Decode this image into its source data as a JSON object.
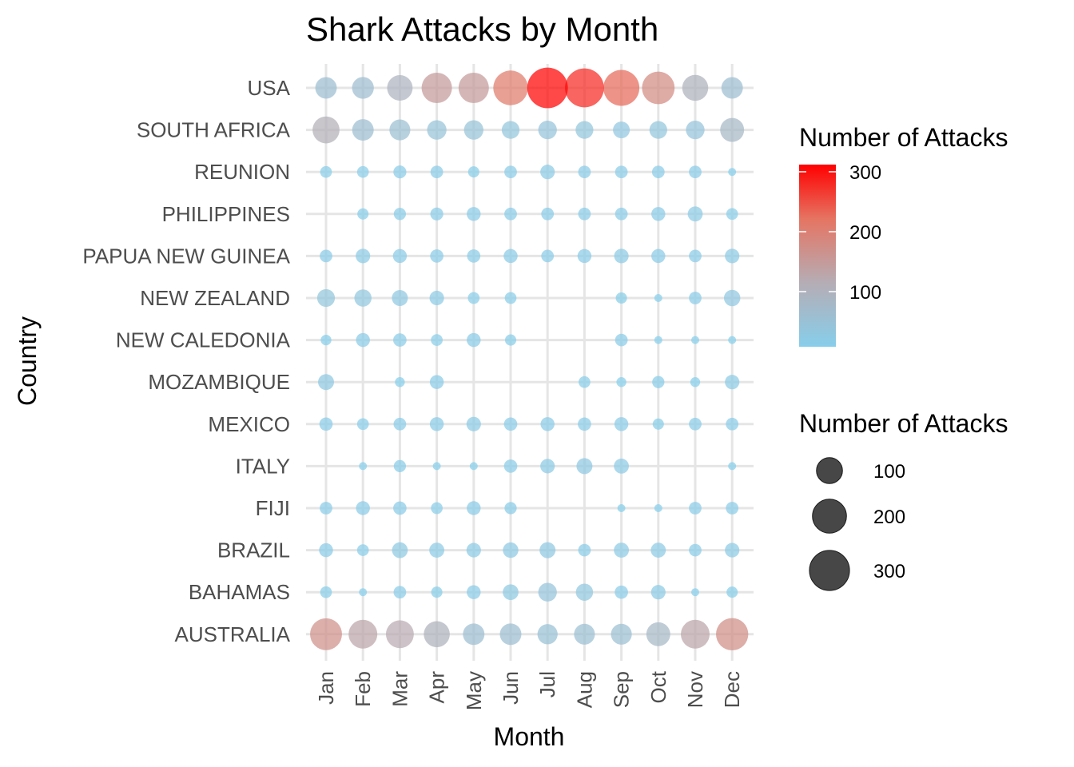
{
  "chart_data": {
    "type": "scatter",
    "title": "Shark Attacks by Month",
    "xlabel": "Month",
    "ylabel": "Country",
    "months": [
      "Jan",
      "Feb",
      "Mar",
      "Apr",
      "May",
      "Jun",
      "Jul",
      "Aug",
      "Sep",
      "Oct",
      "Nov",
      "Dec"
    ],
    "countries": [
      "USA",
      "SOUTH AFRICA",
      "REUNION",
      "PHILIPPINES",
      "PAPUA NEW GUINEA",
      "NEW ZEALAND",
      "NEW CALEDONIA",
      "MOZAMBIQUE",
      "MEXICO",
      "ITALY",
      "FIJI",
      "BRAZIL",
      "BAHAMAS",
      "AUSTRALIA"
    ],
    "values": {
      "USA": [
        60,
        62,
        95,
        150,
        150,
        210,
        310,
        280,
        230,
        180,
        100,
        60
      ],
      "SOUTH AFRICA": [
        110,
        60,
        55,
        45,
        45,
        35,
        40,
        35,
        30,
        35,
        40,
        80
      ],
      "REUNION": [
        12,
        12,
        15,
        14,
        11,
        14,
        20,
        14,
        14,
        14,
        14,
        8
      ],
      "PHILIPPINES": [
        null,
        11,
        13,
        15,
        18,
        14,
        14,
        14,
        14,
        18,
        22,
        12
      ],
      "PAPUA NEW GUINEA": [
        14,
        20,
        18,
        16,
        16,
        18,
        14,
        18,
        20,
        18,
        14,
        20
      ],
      "NEW ZEALAND": [
        35,
        32,
        26,
        20,
        12,
        12,
        null,
        null,
        11,
        8,
        14,
        28
      ],
      "NEW CALEDONIA": [
        10,
        18,
        16,
        12,
        18,
        11,
        null,
        null,
        14,
        8,
        8,
        7
      ],
      "MOZAMBIQUE": [
        26,
        null,
        9,
        18,
        null,
        null,
        null,
        12,
        9,
        13,
        9,
        20
      ],
      "MEXICO": [
        16,
        12,
        14,
        18,
        20,
        16,
        18,
        16,
        18,
        11,
        14,
        14
      ],
      "ITALY": [
        null,
        8,
        13,
        8,
        8,
        16,
        20,
        26,
        22,
        null,
        null,
        7
      ],
      "FIJI": [
        14,
        18,
        16,
        12,
        18,
        13,
        null,
        null,
        8,
        7,
        14,
        14
      ],
      "BRAZIL": [
        18,
        12,
        25,
        22,
        20,
        24,
        26,
        14,
        22,
        22,
        14,
        20
      ],
      "BAHAMAS": [
        12,
        8,
        14,
        11,
        18,
        25,
        40,
        32,
        16,
        20,
        8,
        11
      ],
      "AUSTRALIA": [
        170,
        130,
        120,
        100,
        60,
        60,
        50,
        55,
        55,
        80,
        130,
        175
      ]
    },
    "color_legend": {
      "title": "Number of Attacks",
      "ticks": [
        "100",
        "200",
        "300"
      ],
      "low_color": "#87CEEB",
      "high_color": "#FF0000"
    },
    "size_legend": {
      "title": "Number of Attacks",
      "entries": [
        {
          "label": "100",
          "value": 100
        },
        {
          "label": "200",
          "value": 200
        },
        {
          "label": "300",
          "value": 300
        }
      ]
    },
    "domain": [
      8,
      312
    ],
    "grid": true,
    "legend_placement": "right"
  }
}
